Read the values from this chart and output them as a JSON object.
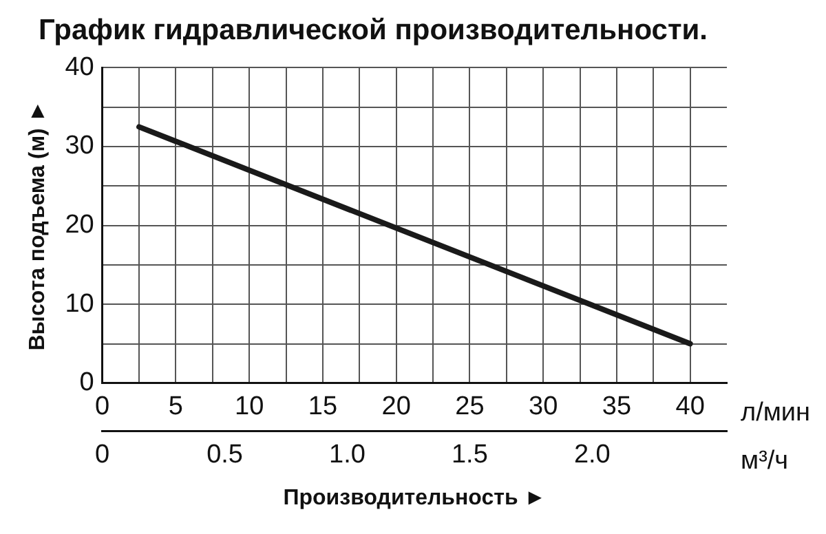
{
  "chart_data": {
    "type": "line",
    "title": "График гидравлической производительности.",
    "xlabel": "л/мин",
    "ylabel": "Высота подъема (м) ►",
    "x2label": "м³/ч",
    "annotations": [
      "Производительность ►"
    ],
    "series": [
      {
        "color": "#1a1a1a",
        "x": [
          2.5,
          40
        ],
        "values": [
          32.5,
          5
        ]
      }
    ],
    "xlim": [
      0,
      42.5
    ],
    "xticks": [
      0,
      {
        "value": 2.5,
        "label": null
      },
      5,
      {
        "value": 7.5,
        "label": null
      },
      10,
      {
        "value": 12.5,
        "label": null
      },
      15,
      {
        "value": 17.5,
        "label": null
      },
      20,
      {
        "value": 22.5,
        "label": null
      },
      25,
      {
        "value": 27.5,
        "label": null
      },
      30,
      {
        "value": 32.5,
        "label": null
      },
      35,
      {
        "value": 37.5,
        "label": null
      },
      40
    ],
    "ylim": [
      0,
      40
    ],
    "yticks": [
      0,
      {
        "value": 5,
        "label": null
      },
      10,
      {
        "value": 15,
        "label": null
      },
      20,
      {
        "value": 25,
        "label": null
      },
      30,
      {
        "value": 35,
        "label": null
      },
      40
    ],
    "x2lim": [
      0,
      2.55
    ],
    "x2ticks": [
      0,
      0.5,
      {
        "value": 1,
        "label": "1.0"
      },
      1.5,
      {
        "value": 2,
        "label": "2.0"
      }
    ],
    "grid": true,
    "marker": "none",
    "line_style": "solid",
    "legend": false
  }
}
